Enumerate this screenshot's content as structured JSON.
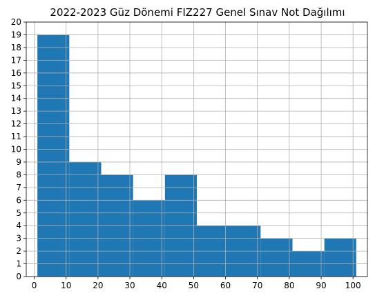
{
  "chart_data": {
    "type": "bar",
    "title": "2022-2023 Güz Dönemi FIZ227 Genel Sınav Not Dağılımı",
    "xlabel": "",
    "ylabel": "",
    "xlim": [
      -2.5,
      104.5
    ],
    "ylim": [
      0,
      20
    ],
    "grid": true,
    "bar_color": "#1f77b4",
    "bins": [
      {
        "start": 1,
        "end": 11,
        "count": 19
      },
      {
        "start": 11,
        "end": 21,
        "count": 9
      },
      {
        "start": 21,
        "end": 31,
        "count": 8
      },
      {
        "start": 31,
        "end": 41,
        "count": 6
      },
      {
        "start": 41,
        "end": 51,
        "count": 8
      },
      {
        "start": 51,
        "end": 71,
        "count": 4
      },
      {
        "start": 71,
        "end": 81,
        "count": 3
      },
      {
        "start": 81,
        "end": 91,
        "count": 2
      },
      {
        "start": 91,
        "end": 101,
        "count": 3
      }
    ],
    "xticks": [
      0,
      10,
      20,
      30,
      40,
      50,
      60,
      70,
      80,
      90,
      100
    ],
    "yticks": [
      0,
      1,
      2,
      3,
      4,
      5,
      6,
      7,
      8,
      9,
      10,
      11,
      12,
      13,
      14,
      15,
      16,
      17,
      18,
      19,
      20
    ]
  }
}
